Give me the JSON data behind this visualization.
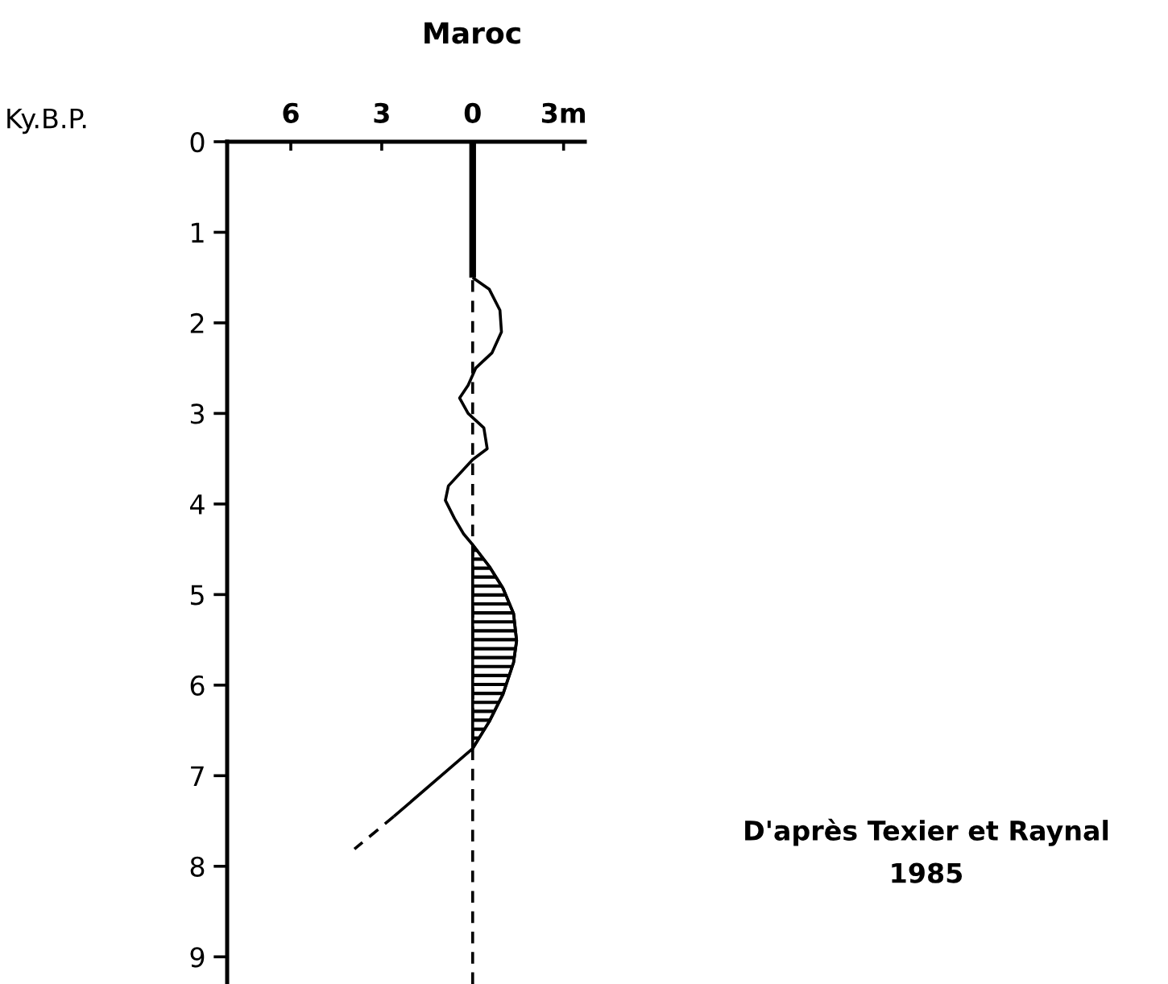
{
  "chart_data": {
    "type": "line",
    "orientation": "horizontal",
    "title": "Maroc",
    "ylabel": "Ky.B.P.",
    "annotations": [
      "D'après Texier et Raynal\n1985"
    ],
    "xlim": [
      -8.1,
      3.7
    ],
    "xticks": [
      {
        "value": -6,
        "label": "6"
      },
      {
        "value": -3,
        "label": "3"
      },
      0,
      {
        "value": 3,
        "label": "3m"
      }
    ],
    "ylim": [
      9.3,
      0
    ],
    "yticks": [
      0,
      1,
      2,
      3,
      4,
      5,
      6,
      7,
      8,
      9
    ],
    "grid": false,
    "legend": false,
    "ref_lines": [
      {
        "axis": "x",
        "value": 0,
        "line_style": "dashed",
        "color": "#000000"
      }
    ],
    "series": [
      {
        "color": "#000000",
        "line_style": "solid",
        "x": [
          0,
          1.5
        ],
        "values": [
          0,
          0
        ]
      },
      {
        "color": "#000000",
        "line_style": "solid",
        "x": [
          1.5,
          1.63,
          1.86,
          2.1,
          2.33,
          2.5,
          2.69,
          2.83,
          3.0,
          3.16,
          3.39,
          3.51,
          3.8,
          3.96,
          4.16,
          4.33,
          4.45,
          4.69,
          4.93,
          5.21,
          5.51,
          5.75,
          6.1,
          6.4,
          6.7,
          7.45
        ],
        "values": [
          0,
          0.55,
          0.9,
          0.95,
          0.64,
          0.1,
          -0.15,
          -0.43,
          -0.15,
          0.37,
          0.48,
          0,
          -0.8,
          -0.9,
          -0.6,
          -0.3,
          0,
          0.55,
          1.0,
          1.35,
          1.45,
          1.35,
          1.0,
          0.55,
          0,
          -2.6
        ]
      },
      {
        "color": "#000000",
        "line_style": "dashed",
        "x": [
          7.45,
          7.81
        ],
        "values": [
          -2.6,
          -3.9
        ]
      },
      {
        "type": "area",
        "color": "#000000",
        "x": [
          4.45,
          4.69,
          4.93,
          5.21,
          5.51,
          5.75,
          6.1,
          6.4,
          6.7
        ],
        "values": [
          0,
          0.55,
          1.0,
          1.35,
          1.45,
          1.35,
          1.0,
          0.55,
          0
        ]
      }
    ]
  }
}
